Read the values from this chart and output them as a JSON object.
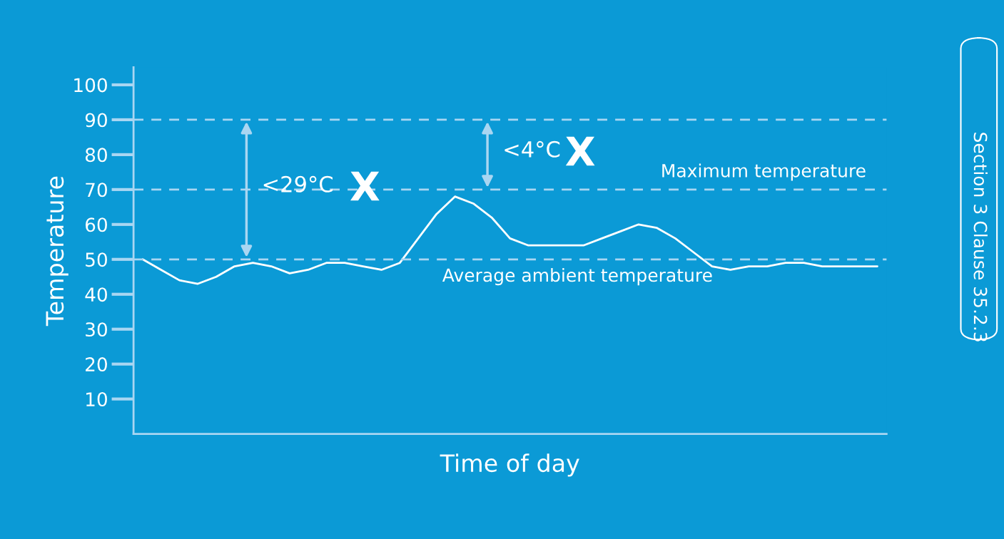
{
  "chart_data": {
    "type": "line",
    "xlabel": "Time of day",
    "ylabel": "Temperature",
    "categories": [
      null,
      null,
      null,
      null,
      null,
      null,
      null,
      null,
      null,
      null,
      null,
      null,
      null,
      null,
      null,
      null,
      null,
      null,
      null,
      null,
      null,
      null,
      null,
      null,
      null,
      null,
      null,
      null,
      null,
      null,
      null,
      null,
      null,
      null,
      null,
      null,
      null,
      null,
      null,
      null,
      null
    ],
    "series": [
      {
        "color": "#ffffff",
        "values": [
          50,
          47,
          44,
          43,
          45,
          48,
          49,
          48,
          46,
          47,
          49,
          49,
          48,
          47,
          49,
          56,
          63,
          68,
          66,
          62,
          56,
          54,
          54,
          54,
          54,
          56,
          58,
          60,
          59,
          56,
          52,
          48,
          47,
          48,
          48,
          49,
          49,
          48,
          48,
          48,
          48
        ]
      }
    ],
    "ylim": [
      0,
      105
    ],
    "yticks": [
      10,
      20,
      30,
      40,
      50,
      60,
      70,
      80,
      90,
      100
    ],
    "tick_labels": "y",
    "grid": false,
    "legend": false,
    "marker": "none",
    "line_style": "solid",
    "ref_lines": [
      {
        "axis": "y",
        "value": 90,
        "color": "#a9d6f2",
        "line_style": "dashed"
      },
      {
        "axis": "y",
        "value": 50,
        "label": "Average ambient temperature",
        "color": "#a9d6f2",
        "line_style": "dashed"
      },
      {
        "axis": "y",
        "value": 70,
        "label": "Maximum temperature",
        "color": "#a9d6f2",
        "line_style": "dashed"
      }
    ],
    "annotations": [
      "<29°C",
      "X",
      "<4°C",
      "X",
      "Section 3 Clause 35.2.3"
    ]
  }
}
